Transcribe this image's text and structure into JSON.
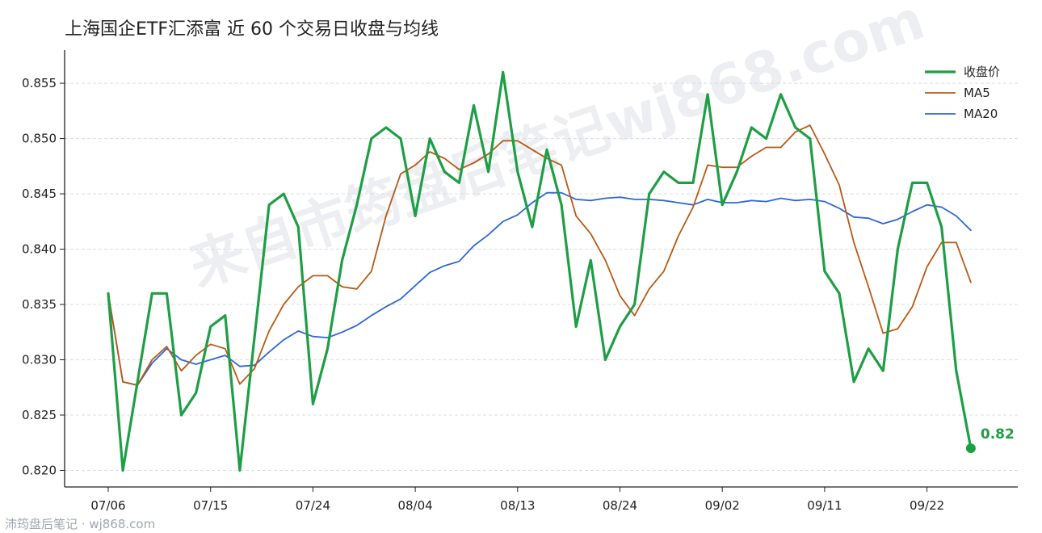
{
  "title": "上海国企ETF汇添富 近 60 个交易日收盘与均线",
  "footer": "沛筠盘后笔记 · wj868.com",
  "watermark": "来自市筠盘后笔记wj868.com",
  "chart_data": {
    "type": "line",
    "ylim": [
      0.8185,
      0.858
    ],
    "yticks": [
      "0.820",
      "0.825",
      "0.830",
      "0.835",
      "0.840",
      "0.845",
      "0.850",
      "0.855"
    ],
    "x_tick_labels": [
      {
        "index": 0,
        "label": "07/06"
      },
      {
        "index": 7,
        "label": "07/15"
      },
      {
        "index": 14,
        "label": "07/24"
      },
      {
        "index": 21,
        "label": "08/04"
      },
      {
        "index": 28,
        "label": "08/13"
      },
      {
        "index": 35,
        "label": "08/24"
      },
      {
        "index": 42,
        "label": "09/02"
      },
      {
        "index": 49,
        "label": "09/11"
      },
      {
        "index": 56,
        "label": "09/22"
      }
    ],
    "grid": "horizontal dashed",
    "legend_position": "top-right",
    "series": [
      {
        "name": "收盘价",
        "color": "#1e9e45",
        "values": [
          0.836,
          0.82,
          0.828,
          0.836,
          0.836,
          0.825,
          0.827,
          0.833,
          0.834,
          0.82,
          0.832,
          0.844,
          0.845,
          0.842,
          0.826,
          0.831,
          0.839,
          0.844,
          0.85,
          0.851,
          0.85,
          0.843,
          0.85,
          0.847,
          0.846,
          0.853,
          0.847,
          0.856,
          0.847,
          0.842,
          0.849,
          0.844,
          0.833,
          0.839,
          0.83,
          0.833,
          0.835,
          0.845,
          0.847,
          0.846,
          0.846,
          0.854,
          0.844,
          0.847,
          0.851,
          0.85,
          0.854,
          0.851,
          0.85,
          0.838,
          0.836,
          0.828,
          0.831,
          0.829,
          0.84,
          0.846,
          0.846,
          0.842,
          0.829,
          0.822
        ]
      },
      {
        "name": "MA5",
        "color": "#b85a14",
        "values": [
          0.836,
          0.828,
          0.8277,
          0.83,
          0.8312,
          0.829,
          0.8304,
          0.8314,
          0.831,
          0.8278,
          0.8292,
          0.8326,
          0.835,
          0.8366,
          0.8376,
          0.8376,
          0.8366,
          0.8364,
          0.838,
          0.843,
          0.8468,
          0.8476,
          0.8488,
          0.8482,
          0.8472,
          0.8478,
          0.8486,
          0.8498,
          0.8498,
          0.849,
          0.8482,
          0.8476,
          0.843,
          0.8414,
          0.839,
          0.8358,
          0.834,
          0.8364,
          0.838,
          0.8412,
          0.8438,
          0.8476,
          0.8474,
          0.8474,
          0.8484,
          0.8492,
          0.8492,
          0.8506,
          0.8512,
          0.8486,
          0.8458,
          0.8406,
          0.8366,
          0.8324,
          0.8328,
          0.8348,
          0.8384,
          0.8406,
          0.8406,
          0.837
        ]
      },
      {
        "name": "MA20",
        "color": "#2f68d8",
        "values": [
          0.836,
          0.828,
          0.8277,
          0.8297,
          0.831,
          0.83,
          0.8296,
          0.83,
          0.8304,
          0.8294,
          0.8295,
          0.8307,
          0.8318,
          0.8326,
          0.8321,
          0.832,
          0.8325,
          0.8331,
          0.834,
          0.8348,
          0.8355,
          0.8367,
          0.8379,
          0.8385,
          0.8389,
          0.8403,
          0.8413,
          0.8425,
          0.8431,
          0.8442,
          0.8451,
          0.8451,
          0.8445,
          0.8444,
          0.8446,
          0.8447,
          0.8445,
          0.8445,
          0.8444,
          0.8442,
          0.844,
          0.8445,
          0.8442,
          0.8442,
          0.8444,
          0.8443,
          0.8446,
          0.8444,
          0.8445,
          0.8443,
          0.8437,
          0.8429,
          0.8428,
          0.8423,
          0.8427,
          0.8434,
          0.844,
          0.8438,
          0.843,
          0.8417
        ]
      }
    ],
    "annotation": {
      "label": "0.82",
      "series": "收盘价",
      "index": 59
    }
  }
}
